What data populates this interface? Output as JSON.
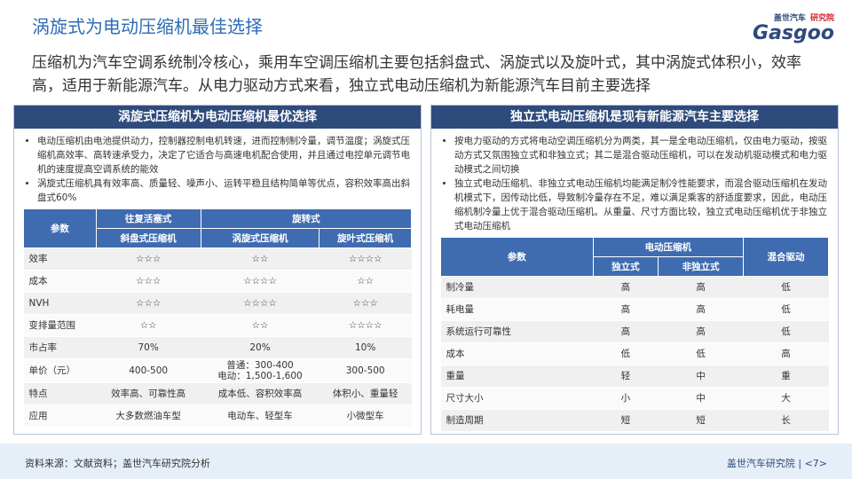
{
  "header": {
    "title": "涡旋式为电动压缩机最佳选择",
    "logo_brand": "盖世汽车",
    "logo_tag": "研究院",
    "logo_word": "Gasgoo"
  },
  "intro": "压缩机为汽车空调系统制冷核心，乘用车空调压缩机主要包括斜盘式、涡旋式以及旋叶式，其中涡旋式体积小，效率高，适用于新能源汽车。从电力驱动方式来看，独立式电动压缩机为新能源汽车目前主要选择",
  "panels": [
    {
      "title": "涡旋式压缩机为电动压缩机最优选择",
      "bullets": [
        "电动压缩机由电池提供动力，控制器控制电机转速，进而控制制冷量，调节温度；涡旋式压缩机高效率、高转速承受力，决定了它适合与高速电机配合使用，并且通过电控单元调节电机的速度提高空调系统的能效",
        "涡旋式压缩机具有效率高、质量轻、噪声小、运转平稳且结构简单等优点，容积效率高出斜盘式60%"
      ],
      "table": {
        "param_header": "参数",
        "groups": [
          {
            "label": "往复活塞式",
            "columns": [
              "斜盘式压缩机"
            ]
          },
          {
            "label": "旋转式",
            "columns": [
              "涡旋式压缩机",
              "旋叶式压缩机"
            ]
          }
        ],
        "rows": [
          [
            "效率",
            "☆☆☆",
            "☆☆",
            "☆☆☆☆"
          ],
          [
            "成本",
            "☆☆☆",
            "☆☆☆☆",
            "☆☆"
          ],
          [
            "NVH",
            "☆☆☆",
            "☆☆☆☆",
            "☆☆☆"
          ],
          [
            "变排量范围",
            "☆☆",
            "☆☆",
            "☆☆☆☆"
          ],
          [
            "市占率",
            "70%",
            "20%",
            "10%"
          ],
          [
            "单价（元）",
            "400-500",
            "普通：300-400\n电动：1,500-1,600",
            "300-500"
          ],
          [
            "特点",
            "效率高、可靠性高",
            "成本低、容积效率高",
            "体积小、重量轻"
          ],
          [
            "应用",
            "大多数燃油车型",
            "电动车、轻型车",
            "小微型车"
          ]
        ]
      }
    },
    {
      "title": "独立式电动压缩机是现有新能源汽车主要选择",
      "bullets": [
        "按电力驱动的方式将电动空调压缩机分为两类，其一是全电动压缩机，仅由电力驱动，按驱动方式又氛围独立式和非独立式；其二是混合驱动压缩机，可以在发动机驱动模式和电力驱动模式之间切换",
        "独立式电动压缩机、非独立式电动压缩机均能满足制冷性能要求，而混合驱动压缩机在发动机模式下，因传动比低，导致制冷量存在不足，难以满足乘客的舒适度要求，因此，电动压缩机制冷量上优于混合驱动压缩机。从重量、尺寸方面比较，独立式电动压缩机优于非独立式电动压缩机"
      ],
      "table": {
        "param_header": "参数",
        "groups": [
          {
            "label": "电动压缩机",
            "columns": [
              "独立式",
              "非独立式"
            ]
          },
          {
            "label": "混合驱动",
            "columns": []
          }
        ],
        "rows": [
          [
            "制冷量",
            "高",
            "高",
            "低"
          ],
          [
            "耗电量",
            "高",
            "高",
            "低"
          ],
          [
            "系统运行可靠性",
            "高",
            "高",
            "低"
          ],
          [
            "成本",
            "低",
            "低",
            "高"
          ],
          [
            "重量",
            "轻",
            "中",
            "重"
          ],
          [
            "尺寸大小",
            "小",
            "中",
            "大"
          ],
          [
            "制造周期",
            "短",
            "短",
            "长"
          ]
        ]
      }
    }
  ],
  "footer": {
    "source": "资料来源：文献资料；盖世汽车研究院分析",
    "org": "盖世汽车研究院",
    "page": "<7>"
  }
}
